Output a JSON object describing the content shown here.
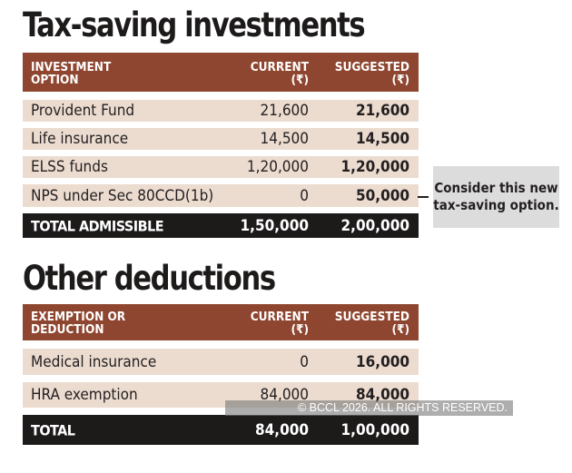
{
  "section1": {
    "title": "Tax-saving investments",
    "headers": [
      "INVESTMENT\nOPTION",
      "CURRENT\n(₹)",
      "SUGGESTED\n(₹)"
    ],
    "rows": [
      [
        "Provident Fund",
        "21,600",
        "21,600"
      ],
      [
        "Life insurance",
        "14,500",
        "14,500"
      ],
      [
        "ELSS funds",
        "1,20,000",
        "1,20,000"
      ],
      [
        "NPS under Sec 80CCD(1b)",
        "0",
        "50,000"
      ]
    ],
    "total": [
      "TOTAL ADMISSIBLE",
      "1,50,000",
      "2,00,000"
    ],
    "callout": "Consider this new tax-saving option."
  },
  "section2": {
    "title": "Other deductions",
    "headers": [
      "EXEMPTION OR\nDEDUCTION",
      "CURRENT\n(₹)",
      "SUGGESTED\n(₹)"
    ],
    "rows": [
      [
        "Medical insurance",
        "0",
        "16,000"
      ],
      [
        "HRA exemption",
        "84,000",
        "84,000"
      ]
    ],
    "total": [
      "TOTAL",
      "84,000",
      "1,00,000"
    ]
  },
  "watermark": "© BCCL 2026. ALL RIGHTS RESERVED.",
  "colors": {
    "header": "#8e4630",
    "row": "#ecdcd0",
    "total": "#1d1a1a",
    "callout": "#dcdcdc"
  }
}
